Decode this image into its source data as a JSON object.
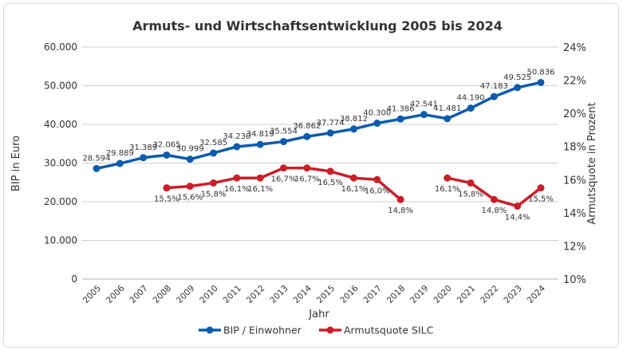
{
  "chart_data": {
    "type": "line",
    "title": "Armuts- und Wirtschaftsentwicklung 2005 bis 2024",
    "xlabel": "Jahr",
    "ylabel_left": "BIP in Euro",
    "ylabel_right": "Armutsquote in Prozent",
    "x": [
      "2005",
      "2006",
      "2007",
      "2008",
      "2009",
      "2010",
      "2011",
      "2012",
      "2013",
      "2014",
      "2015",
      "2016",
      "2017",
      "2018",
      "2019",
      "2020",
      "2021",
      "2022",
      "2023",
      "2024"
    ],
    "ylim_left": [
      0,
      60000
    ],
    "yticks_left": [
      "0",
      "10.000",
      "20.000",
      "30.000",
      "40.000",
      "50.000",
      "60.000"
    ],
    "ylim_right": [
      10,
      24
    ],
    "yticks_right": [
      "10%",
      "12%",
      "14%",
      "16%",
      "18%",
      "20%",
      "22%",
      "24%"
    ],
    "grid": true,
    "legend_placement": "bottom",
    "series": [
      {
        "name": "BIP / Einwohner",
        "axis": "left",
        "color": "#0b5cad",
        "values": [
          28594,
          29889,
          31389,
          32065,
          30999,
          32585,
          34230,
          34819,
          35554,
          36862,
          37774,
          38812,
          40300,
          41386,
          42541,
          41481,
          44190,
          47183,
          49525,
          50836
        ],
        "labels": [
          "28.594",
          "29.889",
          "31.389",
          "32.065",
          "30.999",
          "32.585",
          "34.230",
          "34.819",
          "35.554",
          "36.862",
          "37.774",
          "38.812",
          "40.300",
          "41.386",
          "42.541",
          "41.481",
          "44.190",
          "47.183",
          "49.525",
          "50.836"
        ]
      },
      {
        "name": "Armutsquote SILC",
        "axis": "right",
        "color": "#c8202a",
        "values": [
          null,
          null,
          null,
          15.5,
          15.6,
          15.8,
          16.1,
          16.1,
          16.7,
          16.7,
          16.5,
          16.1,
          16.0,
          14.8,
          null,
          16.1,
          15.8,
          14.8,
          14.4,
          15.5
        ],
        "labels": [
          null,
          null,
          null,
          "15,5%",
          "15,6%",
          "15,8%",
          "16,1%",
          "16,1%",
          "16,7%",
          "16,7%",
          "16,5%",
          "16,1%",
          "16,0%",
          "14,8%",
          null,
          "16,1%",
          "15,8%",
          "14,8%",
          "14,4%",
          "15,5%"
        ]
      }
    ]
  }
}
